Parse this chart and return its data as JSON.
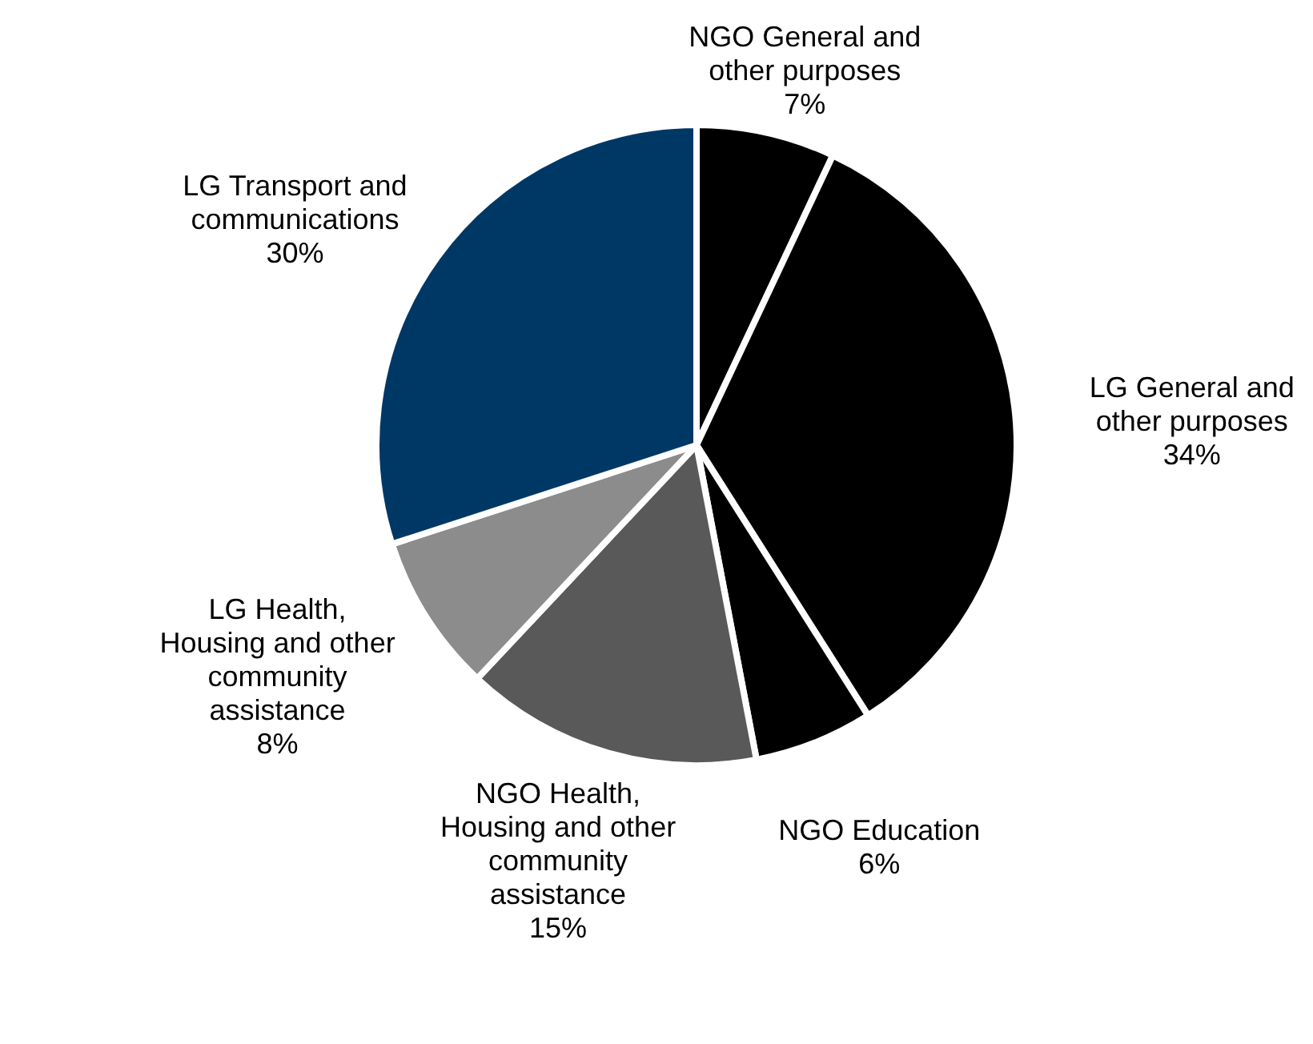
{
  "chart_data": {
    "type": "pie",
    "categories": [
      "NGO General and other purposes",
      "LG General and other purposes",
      "NGO Education",
      "NGO Health, Housing and other community assistance",
      "LG Health, Housing and other community assistance",
      "LG Transport and communications"
    ],
    "values": [
      7,
      34,
      6,
      15,
      8,
      30
    ],
    "colors": [
      "#000000",
      "#000000",
      "#000000",
      "#595959",
      "#8c8c8c",
      "#003865"
    ],
    "value_labels": [
      "7%",
      "34%",
      "6%",
      "15%",
      "8%",
      "30%"
    ]
  }
}
